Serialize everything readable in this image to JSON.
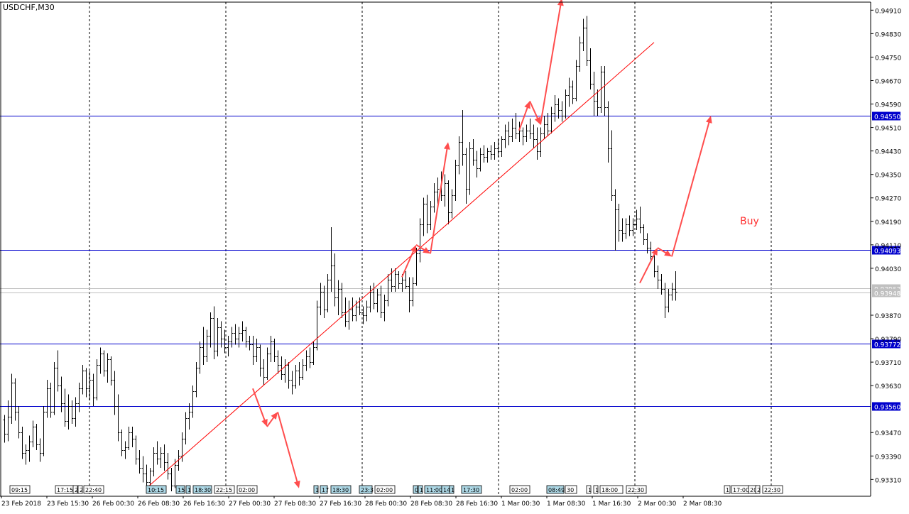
{
  "symbol": "USDCHF,M30",
  "colors": {
    "background": "#ffffff",
    "candle": "#000000",
    "grid": "#000000",
    "level_line": "#0000cc",
    "trend_line": "#ff0000",
    "arrow": "#ff4d4d",
    "label_fill": "#add8e6",
    "current_price_line": "#c0c0c0"
  },
  "annotation": {
    "text": "Buy"
  },
  "chart_data": {
    "type": "candlestick",
    "title": "USDCHF,M30",
    "timeframe": "M30",
    "ylim": [
      0.9326,
      0.94935
    ],
    "grid": "vertical dashed",
    "price_ticks": [
      "0.94910",
      "0.94830",
      "0.94750",
      "0.94670",
      "0.94590",
      "0.94510",
      "0.94430",
      "0.94350",
      "0.94270",
      "0.94190",
      "0.94110",
      "0.94030",
      "0.93870",
      "0.93790",
      "0.93710",
      "0.93630",
      "0.93470",
      "0.93390",
      "0.93310"
    ],
    "date_ticks": [
      "23 Feb 2018",
      "23 Feb 15:30",
      "26 Feb 00:30",
      "26 Feb 08:30",
      "26 Feb 16:30",
      "27 Feb 00:30",
      "27 Feb 08:30",
      "27 Feb 16:30",
      "28 Feb 00:30",
      "28 Feb 08:30",
      "28 Feb 16:30",
      "1 Mar 00:30",
      "1 Mar 08:30",
      "1 Mar 16:30",
      "2 Mar 00:30",
      "2 Mar 08:30"
    ],
    "levels": [
      {
        "price": 0.9455,
        "label": "0.94550"
      },
      {
        "price": 0.94093,
        "label": "0.94093"
      },
      {
        "price": 0.93772,
        "label": "0.93772"
      },
      {
        "price": 0.9356,
        "label": "0.93560"
      }
    ],
    "current_prices": [
      {
        "price": 0.93963,
        "label": "0.93963"
      },
      {
        "price": 0.93948,
        "label": "0.93948"
      }
    ],
    "time_labels": [
      "09:15",
      "17:15",
      "2",
      "2",
      "22:40",
      "10:15",
      "15",
      "1",
      "18:30",
      "22:15",
      "02:00",
      "1",
      "17",
      "18:30",
      "23:3",
      "02:00",
      "0",
      "1",
      "11:00",
      "14",
      "1",
      "17:30",
      "02:00",
      "08:49",
      "30",
      "1",
      "1",
      "18:00",
      "22:30",
      "1",
      "17:00",
      "20",
      "2",
      "22:30"
    ],
    "candles": [
      [
        0.93515,
        0.9353,
        0.93435,
        0.93465
      ],
      [
        0.93465,
        0.9358,
        0.9344,
        0.93525
      ],
      [
        0.93525,
        0.9367,
        0.935,
        0.9364
      ],
      [
        0.9364,
        0.93655,
        0.9351,
        0.9354
      ],
      [
        0.9354,
        0.9356,
        0.9345,
        0.9347
      ],
      [
        0.9347,
        0.9349,
        0.9338,
        0.934
      ],
      [
        0.934,
        0.9343,
        0.9336,
        0.9341
      ],
      [
        0.9341,
        0.9346,
        0.9337,
        0.9344
      ],
      [
        0.9344,
        0.9351,
        0.9342,
        0.9349
      ],
      [
        0.9349,
        0.935,
        0.9341,
        0.9343
      ],
      [
        0.9343,
        0.9345,
        0.9337,
        0.934
      ],
      [
        0.934,
        0.9356,
        0.9339,
        0.9354
      ],
      [
        0.9354,
        0.9365,
        0.9352,
        0.9362
      ],
      [
        0.9362,
        0.9364,
        0.9352,
        0.9354
      ],
      [
        0.9354,
        0.9371,
        0.9353,
        0.9369
      ],
      [
        0.9369,
        0.9375,
        0.9361,
        0.9363
      ],
      [
        0.9363,
        0.9366,
        0.9354,
        0.9357
      ],
      [
        0.9357,
        0.9362,
        0.9349,
        0.9351
      ],
      [
        0.9351,
        0.936,
        0.9348,
        0.9356
      ],
      [
        0.9356,
        0.9358,
        0.935,
        0.9352
      ],
      [
        0.9352,
        0.9359,
        0.9349,
        0.9357
      ],
      [
        0.9357,
        0.9364,
        0.9354,
        0.9362
      ],
      [
        0.9362,
        0.937,
        0.936,
        0.9368
      ],
      [
        0.9368,
        0.9369,
        0.9359,
        0.9362
      ],
      [
        0.9362,
        0.9368,
        0.9358,
        0.9365
      ],
      [
        0.9365,
        0.9367,
        0.9356,
        0.9359
      ],
      [
        0.9359,
        0.9372,
        0.9358,
        0.937
      ],
      [
        0.937,
        0.9376,
        0.9367,
        0.9374
      ],
      [
        0.9374,
        0.9375,
        0.9366,
        0.9368
      ],
      [
        0.9368,
        0.9374,
        0.9364,
        0.9372
      ],
      [
        0.9372,
        0.9373,
        0.9363,
        0.9365
      ],
      [
        0.9365,
        0.9368,
        0.9353,
        0.9356
      ],
      [
        0.9356,
        0.936,
        0.9344,
        0.9347
      ],
      [
        0.9347,
        0.9348,
        0.9339,
        0.9341
      ],
      [
        0.9341,
        0.9344,
        0.9338,
        0.9342
      ],
      [
        0.9342,
        0.9349,
        0.9341,
        0.9347
      ],
      [
        0.9347,
        0.9349,
        0.9342,
        0.9345
      ],
      [
        0.9345,
        0.9346,
        0.9336,
        0.9338
      ],
      [
        0.9338,
        0.9341,
        0.9333,
        0.9335
      ],
      [
        0.9335,
        0.9339,
        0.933,
        0.9333
      ],
      [
        0.9333,
        0.9336,
        0.9327,
        0.933
      ],
      [
        0.933,
        0.9335,
        0.9328,
        0.9334
      ],
      [
        0.9334,
        0.9342,
        0.9332,
        0.934
      ],
      [
        0.934,
        0.9344,
        0.9336,
        0.9338
      ],
      [
        0.9338,
        0.9342,
        0.9335,
        0.934
      ],
      [
        0.934,
        0.9343,
        0.9334,
        0.9337
      ],
      [
        0.9337,
        0.934,
        0.9331,
        0.9333
      ],
      [
        0.9333,
        0.9335,
        0.9327,
        0.9329
      ],
      [
        0.9329,
        0.9338,
        0.9328,
        0.9336
      ],
      [
        0.9336,
        0.9341,
        0.9334,
        0.9339
      ],
      [
        0.9339,
        0.9347,
        0.9337,
        0.9345
      ],
      [
        0.9345,
        0.9354,
        0.9343,
        0.9352
      ],
      [
        0.9352,
        0.9357,
        0.9348,
        0.9354
      ],
      [
        0.9354,
        0.9363,
        0.9352,
        0.9361
      ],
      [
        0.9361,
        0.9371,
        0.9359,
        0.9369
      ],
      [
        0.9369,
        0.9378,
        0.9367,
        0.9376
      ],
      [
        0.9376,
        0.9383,
        0.937,
        0.9373
      ],
      [
        0.9373,
        0.9382,
        0.9371,
        0.938
      ],
      [
        0.938,
        0.9388,
        0.9376,
        0.9386
      ],
      [
        0.9386,
        0.939,
        0.9372,
        0.9375
      ],
      [
        0.9375,
        0.9386,
        0.9373,
        0.9383
      ],
      [
        0.9383,
        0.9385,
        0.9376,
        0.9379
      ],
      [
        0.9379,
        0.9382,
        0.9374,
        0.9376
      ],
      [
        0.9376,
        0.938,
        0.9373,
        0.9378
      ],
      [
        0.9378,
        0.9383,
        0.9376,
        0.9381
      ],
      [
        0.9381,
        0.9384,
        0.9377,
        0.9379
      ],
      [
        0.9379,
        0.9383,
        0.9376,
        0.9381
      ],
      [
        0.9381,
        0.9385,
        0.9378,
        0.9382
      ],
      [
        0.9382,
        0.9383,
        0.9376,
        0.9378
      ],
      [
        0.9378,
        0.938,
        0.9375,
        0.9377
      ],
      [
        0.9377,
        0.938,
        0.937,
        0.9373
      ],
      [
        0.9373,
        0.9379,
        0.9371,
        0.9376
      ],
      [
        0.9376,
        0.9377,
        0.9366,
        0.9369
      ],
      [
        0.9369,
        0.9372,
        0.9363,
        0.9366
      ],
      [
        0.9366,
        0.9376,
        0.9365,
        0.9374
      ],
      [
        0.9374,
        0.938,
        0.9371,
        0.9378
      ],
      [
        0.9378,
        0.9379,
        0.9371,
        0.9373
      ],
      [
        0.9373,
        0.9375,
        0.9367,
        0.937
      ],
      [
        0.937,
        0.9373,
        0.9365,
        0.9367
      ],
      [
        0.9367,
        0.9372,
        0.9364,
        0.937
      ],
      [
        0.937,
        0.9371,
        0.9362,
        0.9365
      ],
      [
        0.9365,
        0.9368,
        0.936,
        0.9363
      ],
      [
        0.9363,
        0.937,
        0.9362,
        0.9368
      ],
      [
        0.9368,
        0.9371,
        0.9363,
        0.9366
      ],
      [
        0.9366,
        0.9372,
        0.9365,
        0.937
      ],
      [
        0.937,
        0.9375,
        0.9368,
        0.9373
      ],
      [
        0.9373,
        0.9376,
        0.9369,
        0.9371
      ],
      [
        0.9371,
        0.9378,
        0.937,
        0.9376
      ],
      [
        0.9376,
        0.9392,
        0.9375,
        0.939
      ],
      [
        0.939,
        0.9398,
        0.9387,
        0.9395
      ],
      [
        0.9395,
        0.9397,
        0.9386,
        0.9389
      ],
      [
        0.9389,
        0.9401,
        0.9388,
        0.9399
      ],
      [
        0.9399,
        0.9417,
        0.9395,
        0.9404
      ],
      [
        0.9404,
        0.9408,
        0.939,
        0.9393
      ],
      [
        0.9393,
        0.9399,
        0.9387,
        0.9396
      ],
      [
        0.9396,
        0.9398,
        0.9386,
        0.9388
      ],
      [
        0.9388,
        0.9393,
        0.9383,
        0.9385
      ],
      [
        0.9385,
        0.9392,
        0.9382,
        0.9389
      ],
      [
        0.9389,
        0.9393,
        0.9385,
        0.9387
      ],
      [
        0.9387,
        0.9392,
        0.9385,
        0.939
      ],
      [
        0.939,
        0.9393,
        0.9387,
        0.9388
      ],
      [
        0.9388,
        0.939,
        0.9384,
        0.9387
      ],
      [
        0.9387,
        0.9392,
        0.9385,
        0.939
      ],
      [
        0.939,
        0.9397,
        0.9388,
        0.9395
      ],
      [
        0.9395,
        0.9398,
        0.9389,
        0.9391
      ],
      [
        0.9391,
        0.9396,
        0.9388,
        0.9394
      ],
      [
        0.9394,
        0.9397,
        0.9386,
        0.9388
      ],
      [
        0.9388,
        0.9394,
        0.9385,
        0.9392
      ],
      [
        0.9392,
        0.9401,
        0.939,
        0.9399
      ],
      [
        0.9399,
        0.9403,
        0.9395,
        0.9397
      ],
      [
        0.9397,
        0.9403,
        0.9395,
        0.9401
      ],
      [
        0.9401,
        0.9402,
        0.9396,
        0.9398
      ],
      [
        0.9398,
        0.9401,
        0.9395,
        0.9399
      ],
      [
        0.9399,
        0.9402,
        0.9396,
        0.9397
      ],
      [
        0.9397,
        0.94,
        0.9388,
        0.9392
      ],
      [
        0.9392,
        0.94,
        0.939,
        0.9398
      ],
      [
        0.9398,
        0.941,
        0.9397,
        0.9408
      ],
      [
        0.9408,
        0.942,
        0.9405,
        0.9418
      ],
      [
        0.9418,
        0.9427,
        0.9414,
        0.9425
      ],
      [
        0.9425,
        0.9428,
        0.9415,
        0.9418
      ],
      [
        0.9418,
        0.9426,
        0.9416,
        0.9424
      ],
      [
        0.9424,
        0.9432,
        0.9422,
        0.9429
      ],
      [
        0.9429,
        0.9434,
        0.9425,
        0.943
      ],
      [
        0.943,
        0.9436,
        0.9426,
        0.9428
      ],
      [
        0.9428,
        0.9435,
        0.9424,
        0.9432
      ],
      [
        0.9432,
        0.9433,
        0.9418,
        0.9422
      ],
      [
        0.9422,
        0.943,
        0.942,
        0.9428
      ],
      [
        0.9428,
        0.944,
        0.9426,
        0.9438
      ],
      [
        0.9438,
        0.9448,
        0.9435,
        0.9446
      ],
      [
        0.9446,
        0.9457,
        0.9438,
        0.9442
      ],
      [
        0.9442,
        0.9444,
        0.9425,
        0.943
      ],
      [
        0.943,
        0.9446,
        0.9428,
        0.9444
      ],
      [
        0.9444,
        0.9447,
        0.9438,
        0.944
      ],
      [
        0.944,
        0.9443,
        0.9434,
        0.9437
      ],
      [
        0.9437,
        0.9444,
        0.9436,
        0.9442
      ],
      [
        0.9442,
        0.9445,
        0.9439,
        0.9441
      ],
      [
        0.9441,
        0.9444,
        0.9439,
        0.9443
      ],
      [
        0.9443,
        0.9445,
        0.944,
        0.9442
      ],
      [
        0.9442,
        0.9446,
        0.944,
        0.9444
      ],
      [
        0.9444,
        0.9447,
        0.9441,
        0.9443
      ],
      [
        0.9443,
        0.9448,
        0.9441,
        0.9447
      ],
      [
        0.9447,
        0.9452,
        0.9444,
        0.945
      ],
      [
        0.945,
        0.9453,
        0.9445,
        0.9448
      ],
      [
        0.9448,
        0.9454,
        0.9446,
        0.9451
      ],
      [
        0.9451,
        0.9456,
        0.9447,
        0.9449
      ],
      [
        0.9449,
        0.9453,
        0.9446,
        0.945
      ],
      [
        0.945,
        0.9451,
        0.9445,
        0.9448
      ],
      [
        0.9448,
        0.9452,
        0.9446,
        0.945
      ],
      [
        0.945,
        0.9454,
        0.9447,
        0.9449
      ],
      [
        0.9449,
        0.9452,
        0.9444,
        0.9447
      ],
      [
        0.9447,
        0.9451,
        0.944,
        0.9443
      ],
      [
        0.9443,
        0.9451,
        0.9441,
        0.9449
      ],
      [
        0.9449,
        0.9455,
        0.9447,
        0.9452
      ],
      [
        0.9452,
        0.9456,
        0.9448,
        0.945
      ],
      [
        0.945,
        0.9458,
        0.9449,
        0.9456
      ],
      [
        0.9456,
        0.9462,
        0.9453,
        0.9459
      ],
      [
        0.9459,
        0.9461,
        0.9454,
        0.9457
      ],
      [
        0.9457,
        0.946,
        0.9453,
        0.9455
      ],
      [
        0.9455,
        0.9464,
        0.9454,
        0.9462
      ],
      [
        0.9462,
        0.9468,
        0.9458,
        0.9465
      ],
      [
        0.9465,
        0.9467,
        0.9459,
        0.9461
      ],
      [
        0.9461,
        0.9474,
        0.946,
        0.9472
      ],
      [
        0.9472,
        0.9482,
        0.947,
        0.948
      ],
      [
        0.948,
        0.9488,
        0.9477,
        0.9485
      ],
      [
        0.9485,
        0.9489,
        0.9472,
        0.9474
      ],
      [
        0.9474,
        0.9478,
        0.9464,
        0.9466
      ],
      [
        0.9466,
        0.947,
        0.9455,
        0.946
      ],
      [
        0.946,
        0.9464,
        0.9455,
        0.9458
      ],
      [
        0.9458,
        0.9472,
        0.9456,
        0.947
      ],
      [
        0.947,
        0.9472,
        0.9455,
        0.9458
      ],
      [
        0.9458,
        0.946,
        0.9439,
        0.9444
      ],
      [
        0.9444,
        0.945,
        0.9426,
        0.9428
      ],
      [
        0.9428,
        0.943,
        0.9409,
        0.9423
      ],
      [
        0.9423,
        0.9425,
        0.9412,
        0.9416
      ],
      [
        0.9416,
        0.942,
        0.9412,
        0.9415
      ],
      [
        0.9415,
        0.942,
        0.9413,
        0.9418
      ],
      [
        0.9418,
        0.9421,
        0.9414,
        0.9416
      ],
      [
        0.9416,
        0.942,
        0.9414,
        0.9418
      ],
      [
        0.9418,
        0.9423,
        0.9416,
        0.942
      ],
      [
        0.942,
        0.9424,
        0.9415,
        0.9417
      ],
      [
        0.9417,
        0.9418,
        0.9411,
        0.9413
      ],
      [
        0.9413,
        0.9415,
        0.9408,
        0.941
      ],
      [
        0.941,
        0.9412,
        0.9405,
        0.9407
      ],
      [
        0.9407,
        0.9408,
        0.94,
        0.9402
      ],
      [
        0.9402,
        0.9404,
        0.9396,
        0.9399
      ],
      [
        0.9399,
        0.9401,
        0.9394,
        0.9396
      ],
      [
        0.9396,
        0.9398,
        0.9386,
        0.939
      ],
      [
        0.939,
        0.9396,
        0.9388,
        0.9394
      ],
      [
        0.9394,
        0.9398,
        0.9392,
        0.9396
      ],
      [
        0.9396,
        0.9402,
        0.9392,
        0.9395
      ]
    ],
    "trend_line": {
      "start": [
        40,
        0.9328
      ],
      "end": [
        183,
        0.948
      ]
    },
    "arrows": [
      {
        "path": [
          [
            70,
            0.9362
          ],
          [
            74,
            0.9349
          ],
          [
            77,
            0.9354
          ],
          [
            83,
            0.9328
          ]
        ]
      },
      {
        "path": [
          [
            112,
            0.94
          ],
          [
            116,
            0.9411
          ],
          [
            120,
            0.9408
          ],
          [
            125,
            0.9446
          ]
        ]
      },
      {
        "path": [
          [
            145,
            0.945
          ],
          [
            148,
            0.946
          ],
          [
            151,
            0.9452
          ],
          [
            157,
            0.9495
          ]
        ]
      },
      {
        "path": [
          [
            179,
            0.9398
          ],
          [
            184,
            0.941
          ],
          [
            188,
            0.9407
          ],
          [
            199,
            0.9455
          ]
        ]
      }
    ]
  }
}
